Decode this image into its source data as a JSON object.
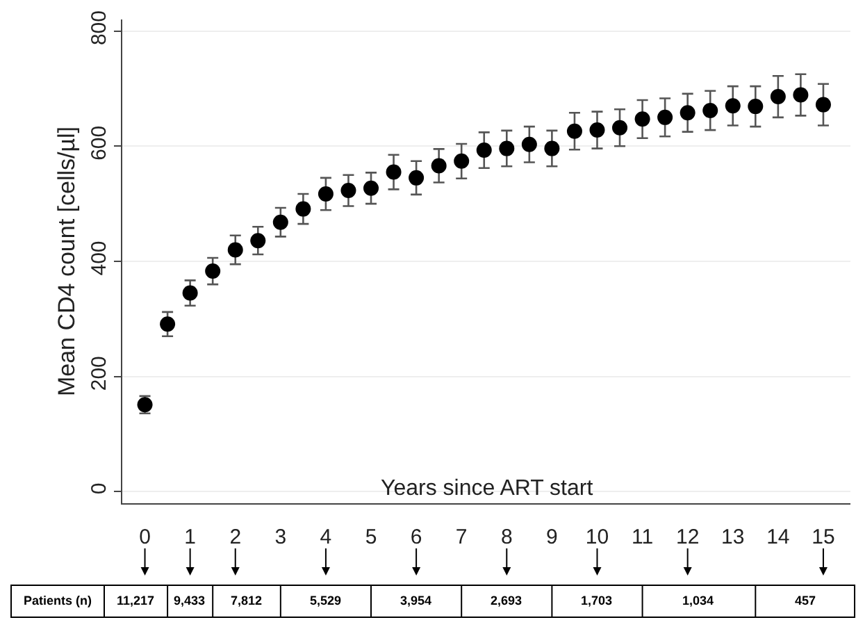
{
  "chart_data": {
    "type": "scatter",
    "xlabel": "Years since ART start",
    "ylabel": "Mean CD4 count [cells/µl]",
    "x": [
      0,
      0.5,
      1,
      1.5,
      2,
      2.5,
      3,
      3.5,
      4,
      4.5,
      5,
      5.5,
      6,
      6.5,
      7,
      7.5,
      8,
      8.5,
      9,
      9.5,
      10,
      10.5,
      11,
      11.5,
      12,
      12.5,
      13,
      13.5,
      14,
      14.5,
      15
    ],
    "series": [
      {
        "color": "#000000",
        "values": [
          151,
          291,
          345,
          383,
          420,
          436,
          468,
          491,
          517,
          523,
          527,
          555,
          545,
          566,
          574,
          593,
          596,
          603,
          596,
          626,
          628,
          632,
          647,
          650,
          658,
          662,
          670,
          669,
          686,
          689,
          672
        ],
        "errors": [
          15,
          21,
          22,
          23,
          25,
          24,
          25,
          26,
          28,
          27,
          27,
          30,
          29,
          29,
          30,
          31,
          31,
          31,
          31,
          32,
          32,
          32,
          33,
          33,
          33,
          34,
          34,
          35,
          36,
          36,
          36
        ]
      }
    ],
    "xlim": [
      -0.5,
      15.6
    ],
    "xticks": [
      0,
      1,
      2,
      3,
      4,
      5,
      6,
      7,
      8,
      9,
      10,
      11,
      12,
      13,
      14,
      15
    ],
    "ylim": [
      -20,
      820
    ],
    "yticks": [
      0,
      200,
      400,
      600,
      800
    ],
    "grid": "y",
    "marker": "circle",
    "annotations": [
      "Patients (n)",
      "11,217",
      "9,433",
      "7,812",
      "5,529",
      "3,954",
      "2,693",
      "1,703",
      "1,034",
      "457"
    ]
  }
}
